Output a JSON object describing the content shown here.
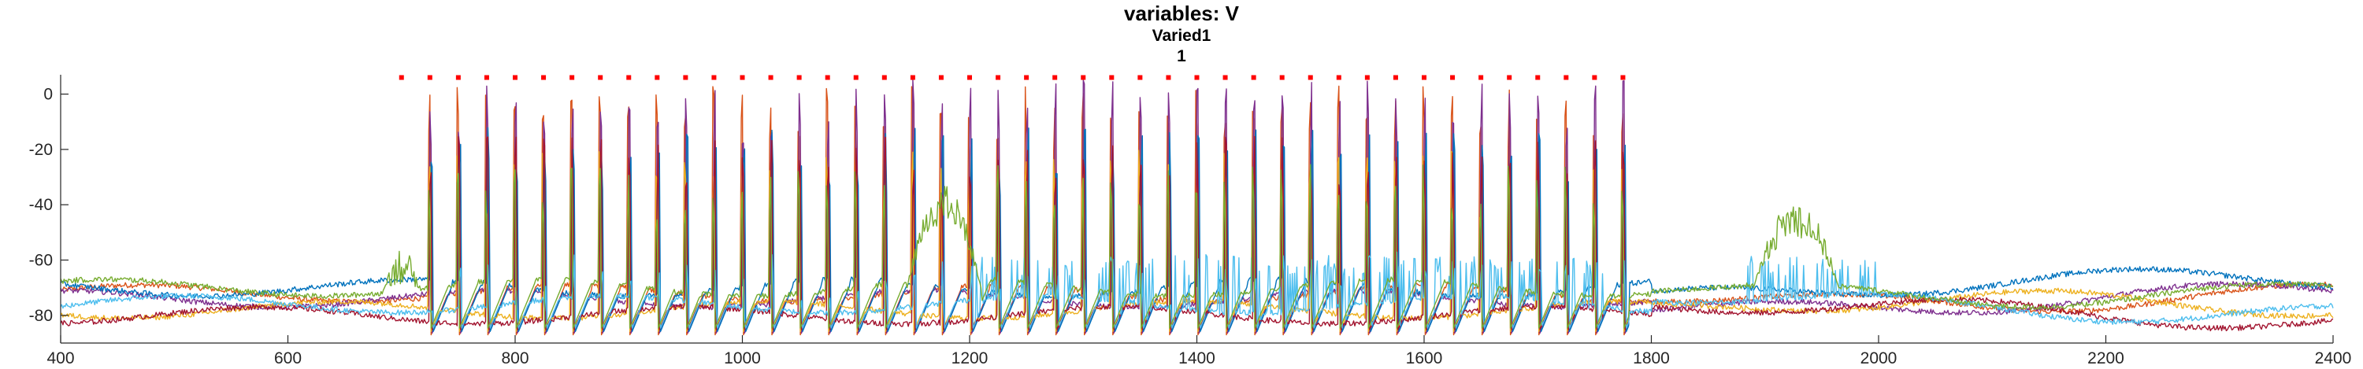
{
  "chart_data": {
    "type": "line",
    "title": "variables: V",
    "subtitle_lines": [
      "Varied1",
      "1"
    ],
    "xlabel": "",
    "ylabel": "",
    "xlim": [
      400,
      2400
    ],
    "ylim": [
      -90,
      7
    ],
    "x_ticks": [
      400,
      600,
      800,
      1000,
      1200,
      1400,
      1600,
      1800,
      2000,
      2200,
      2400
    ],
    "y_ticks": [
      0,
      -20,
      -40,
      -60,
      -80
    ],
    "grid": false,
    "legend": "none",
    "stimulus_markers": {
      "color": "#ff0000",
      "y": 6,
      "x_start": 700,
      "x_end": 1775,
      "interval": 25
    },
    "series": [
      {
        "color": "#d95319",
        "baseline": -72,
        "spike_peak_max": 3
      },
      {
        "color": "#7e2f8e",
        "baseline": -74,
        "spike_peak_max": 6
      },
      {
        "color": "#0072bd",
        "baseline": -70,
        "spike_peak_max": -12
      },
      {
        "color": "#edb120",
        "baseline": -78,
        "spike_peak_max": -20
      },
      {
        "color": "#a2142f",
        "baseline": -80,
        "spike_peak_max": -15
      },
      {
        "color": "#4dbeee",
        "baseline": -76,
        "spike_peak_max": -57
      },
      {
        "color": "#77ac30",
        "baseline": -70,
        "spike_peak_max": -25
      }
    ],
    "spike_times": [
      725,
      750,
      775,
      800,
      825,
      850,
      875,
      900,
      925,
      950,
      975,
      1000,
      1025,
      1050,
      1075,
      1100,
      1125,
      1150,
      1175,
      1200,
      1225,
      1250,
      1275,
      1300,
      1325,
      1350,
      1375,
      1400,
      1425,
      1450,
      1475,
      1500,
      1525,
      1550,
      1575,
      1600,
      1625,
      1650,
      1675,
      1700,
      1725,
      1750,
      1775
    ],
    "burst_windows": [
      {
        "series_color": "#77ac30",
        "x_start": 1145,
        "x_end": 1210,
        "level": -40
      },
      {
        "series_color": "#77ac30",
        "x_start": 1890,
        "x_end": 1965,
        "level": -45
      },
      {
        "series_color": "#77ac30",
        "x_start": 685,
        "x_end": 715,
        "level": -62
      }
    ]
  }
}
